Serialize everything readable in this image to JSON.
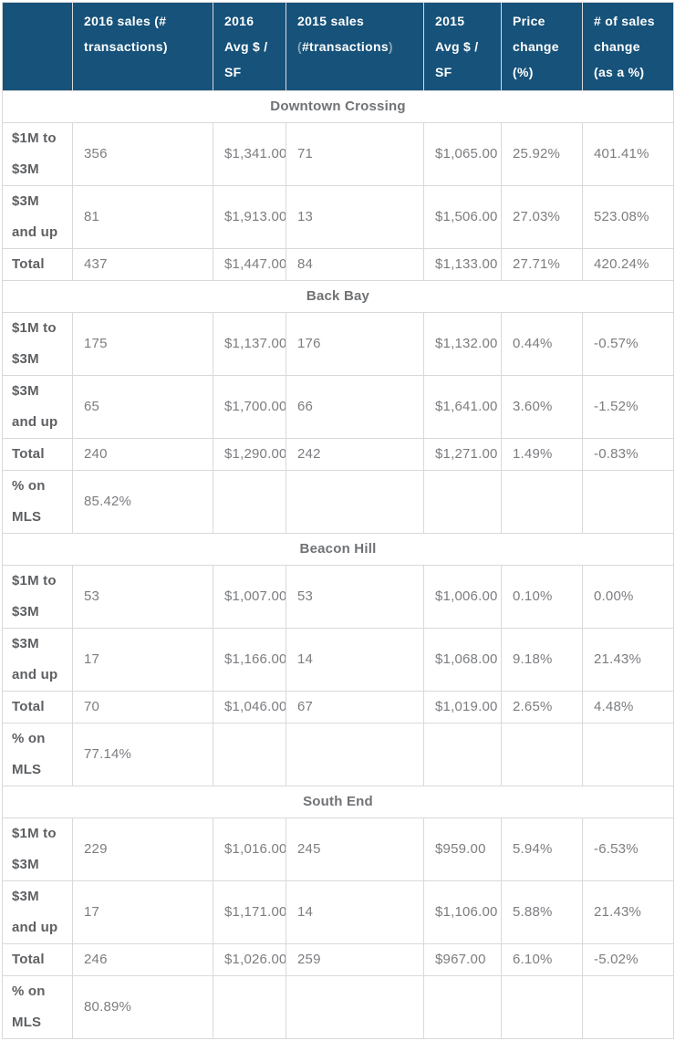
{
  "chart_data": {
    "type": "table",
    "columns": [
      "",
      "2016 sales (# transactions)",
      "2016 Avg $ / SF",
      "2015 sales (#transactions)",
      "2015 Avg $ / SF",
      "Price change (%)",
      "# of sales change (as a %)"
    ],
    "header_2015_sales_parts": {
      "main": "2015 sales",
      "paren_open": "(",
      "inner": "#transactions",
      "paren_close": ")"
    },
    "sections": [
      {
        "name": "Downtown Crossing",
        "rows": [
          {
            "label": "$1M to $3M",
            "values": [
              "356",
              "$1,341.00",
              "71",
              "$1,065.00",
              "25.92%",
              "401.41%"
            ]
          },
          {
            "label": "$3M and up",
            "values": [
              "81",
              "$1,913.00",
              "13",
              "$1,506.00",
              "27.03%",
              "523.08%"
            ]
          },
          {
            "label": "Total",
            "values": [
              "437",
              "$1,447.00",
              "84",
              "$1,133.00",
              "27.71%",
              "420.24%"
            ]
          }
        ]
      },
      {
        "name": "Back Bay",
        "rows": [
          {
            "label": "$1M to $3M",
            "values": [
              "175",
              "$1,137.00",
              "176",
              "$1,132.00",
              "0.44%",
              "-0.57%"
            ]
          },
          {
            "label": "$3M and up",
            "values": [
              "65",
              "$1,700.00",
              "66",
              "$1,641.00",
              "3.60%",
              "-1.52%"
            ]
          },
          {
            "label": "Total",
            "values": [
              "240",
              "$1,290.00",
              "242",
              "$1,271.00",
              "1.49%",
              "-0.83%"
            ]
          },
          {
            "label": "% on MLS",
            "values": [
              "85.42%",
              "",
              "",
              "",
              "",
              ""
            ]
          }
        ]
      },
      {
        "name": "Beacon Hill",
        "rows": [
          {
            "label": "$1M to $3M",
            "values": [
              "53",
              "$1,007.00",
              "53",
              "$1,006.00",
              "0.10%",
              "0.00%"
            ]
          },
          {
            "label": "$3M and up",
            "values": [
              "17",
              "$1,166.00",
              "14",
              "$1,068.00",
              "9.18%",
              "21.43%"
            ]
          },
          {
            "label": "Total",
            "values": [
              "70",
              "$1,046.00",
              "67",
              "$1,019.00",
              "2.65%",
              "4.48%"
            ]
          },
          {
            "label": "% on MLS",
            "values": [
              "77.14%",
              "",
              "",
              "",
              "",
              ""
            ]
          }
        ]
      },
      {
        "name": "South End",
        "rows": [
          {
            "label": "$1M to $3M",
            "values": [
              "229",
              "$1,016.00",
              "245",
              "$959.00",
              "5.94%",
              "-6.53%"
            ]
          },
          {
            "label": "$3M and up",
            "values": [
              "17",
              "$1,171.00",
              "14",
              "$1,106.00",
              "5.88%",
              "21.43%"
            ]
          },
          {
            "label": "Total",
            "values": [
              "246",
              "$1,026.00",
              "259",
              "$967.00",
              "6.10%",
              "-5.02%"
            ]
          },
          {
            "label": "% on MLS",
            "values": [
              "80.89%",
              "",
              "",
              "",
              "",
              ""
            ]
          }
        ]
      }
    ],
    "layout": {
      "legend": "none",
      "grid": "on",
      "section_rows_span_all_columns": true
    },
    "colors": {
      "header_bg": "#16527a",
      "header_text": "#ffffff",
      "header_muted_paren": "#8fa0ac",
      "border": "#d9d9d9",
      "row_label_text": "#5e6063",
      "value_text": "#7b7d80",
      "section_title_text": "#707275",
      "page_bg": "#ffffff"
    }
  }
}
